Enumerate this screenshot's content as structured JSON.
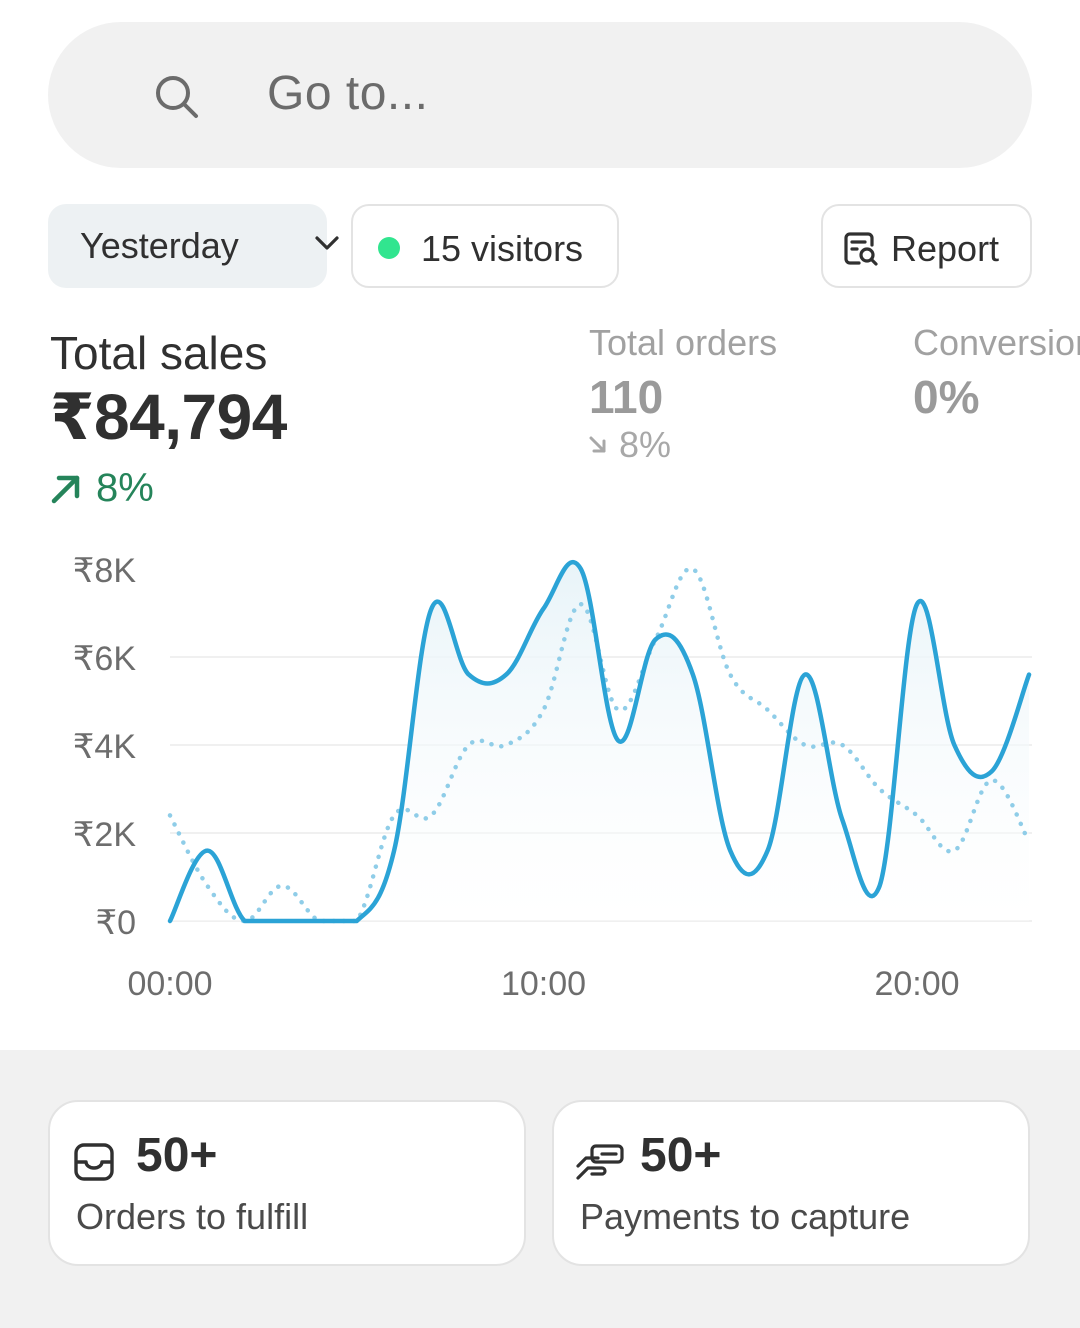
{
  "search": {
    "placeholder": "Go to..."
  },
  "filters": {
    "date_range": "Yesterday",
    "visitors": "15 visitors",
    "report_label": "Report"
  },
  "metrics": {
    "total_sales": {
      "title": "Total sales",
      "value": "₹84,794",
      "change": "8%",
      "direction": "up"
    },
    "total_orders": {
      "title": "Total orders",
      "value": "110",
      "change": "8%",
      "direction": "down"
    },
    "conversion": {
      "title": "Conversion",
      "value": "0%"
    }
  },
  "chart_data": {
    "type": "line",
    "x": [
      0,
      1,
      2,
      3,
      4,
      5,
      6,
      7,
      8,
      9,
      10,
      11,
      12,
      13,
      14,
      15,
      16,
      17,
      18,
      19,
      20,
      21,
      22,
      23
    ],
    "xticks": [
      "00:00",
      "10:00",
      "20:00"
    ],
    "yticks": [
      "₹8K",
      "₹6K",
      "₹4K",
      "₹2K",
      "₹0"
    ],
    "ylim": [
      0,
      8000
    ],
    "grid": true,
    "series": [
      {
        "style": "solid",
        "color": "#2ba3d6",
        "values": [
          0,
          1600,
          0,
          0,
          0,
          0,
          1600,
          7100,
          5600,
          5600,
          7100,
          8000,
          4100,
          6400,
          5600,
          1600,
          1600,
          5600,
          2300,
          800,
          7200,
          4000,
          3400,
          5600
        ]
      },
      {
        "style": "dotted",
        "color": "#8fcde8",
        "values": [
          2400,
          800,
          0,
          800,
          0,
          0,
          2400,
          2400,
          4000,
          4000,
          4800,
          7200,
          4800,
          6400,
          8000,
          5600,
          4800,
          4000,
          4000,
          3000,
          2400,
          1600,
          3200,
          1800
        ]
      }
    ]
  },
  "tasks": [
    {
      "icon": "inbox-icon",
      "count": "50+",
      "label": "Orders to fulfill"
    },
    {
      "icon": "hand-payment-icon",
      "count": "50+",
      "label": "Payments to capture"
    }
  ]
}
